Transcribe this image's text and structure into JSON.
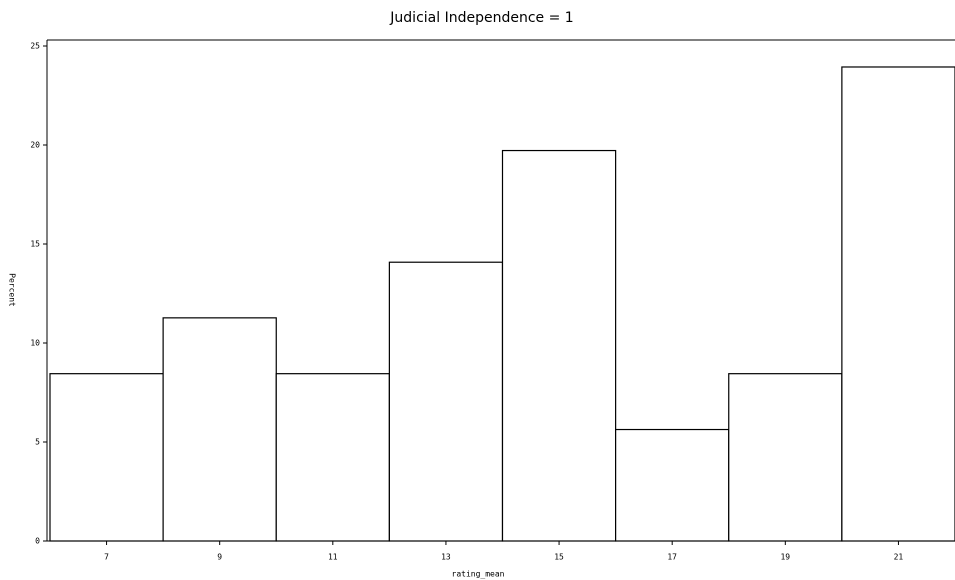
{
  "chart_data": {
    "type": "histogram",
    "title": "Judicial Independence = 1",
    "x_label": "rating_mean",
    "y_label": "Percent",
    "bins": [
      6,
      8,
      10,
      12,
      14,
      16,
      18,
      20,
      22
    ],
    "values": [
      8.45,
      11.27,
      8.45,
      14.08,
      19.72,
      5.63,
      8.45,
      23.94
    ],
    "color": "#ffffff",
    "edgecolor": "#000000",
    "xlim": [
      6,
      22
    ],
    "xticks": [
      7,
      9,
      11,
      13,
      15,
      17,
      19,
      21
    ],
    "ylim": [
      0,
      25
    ],
    "yticks": [
      0,
      5,
      10,
      15,
      20,
      25
    ],
    "grid": false
  }
}
